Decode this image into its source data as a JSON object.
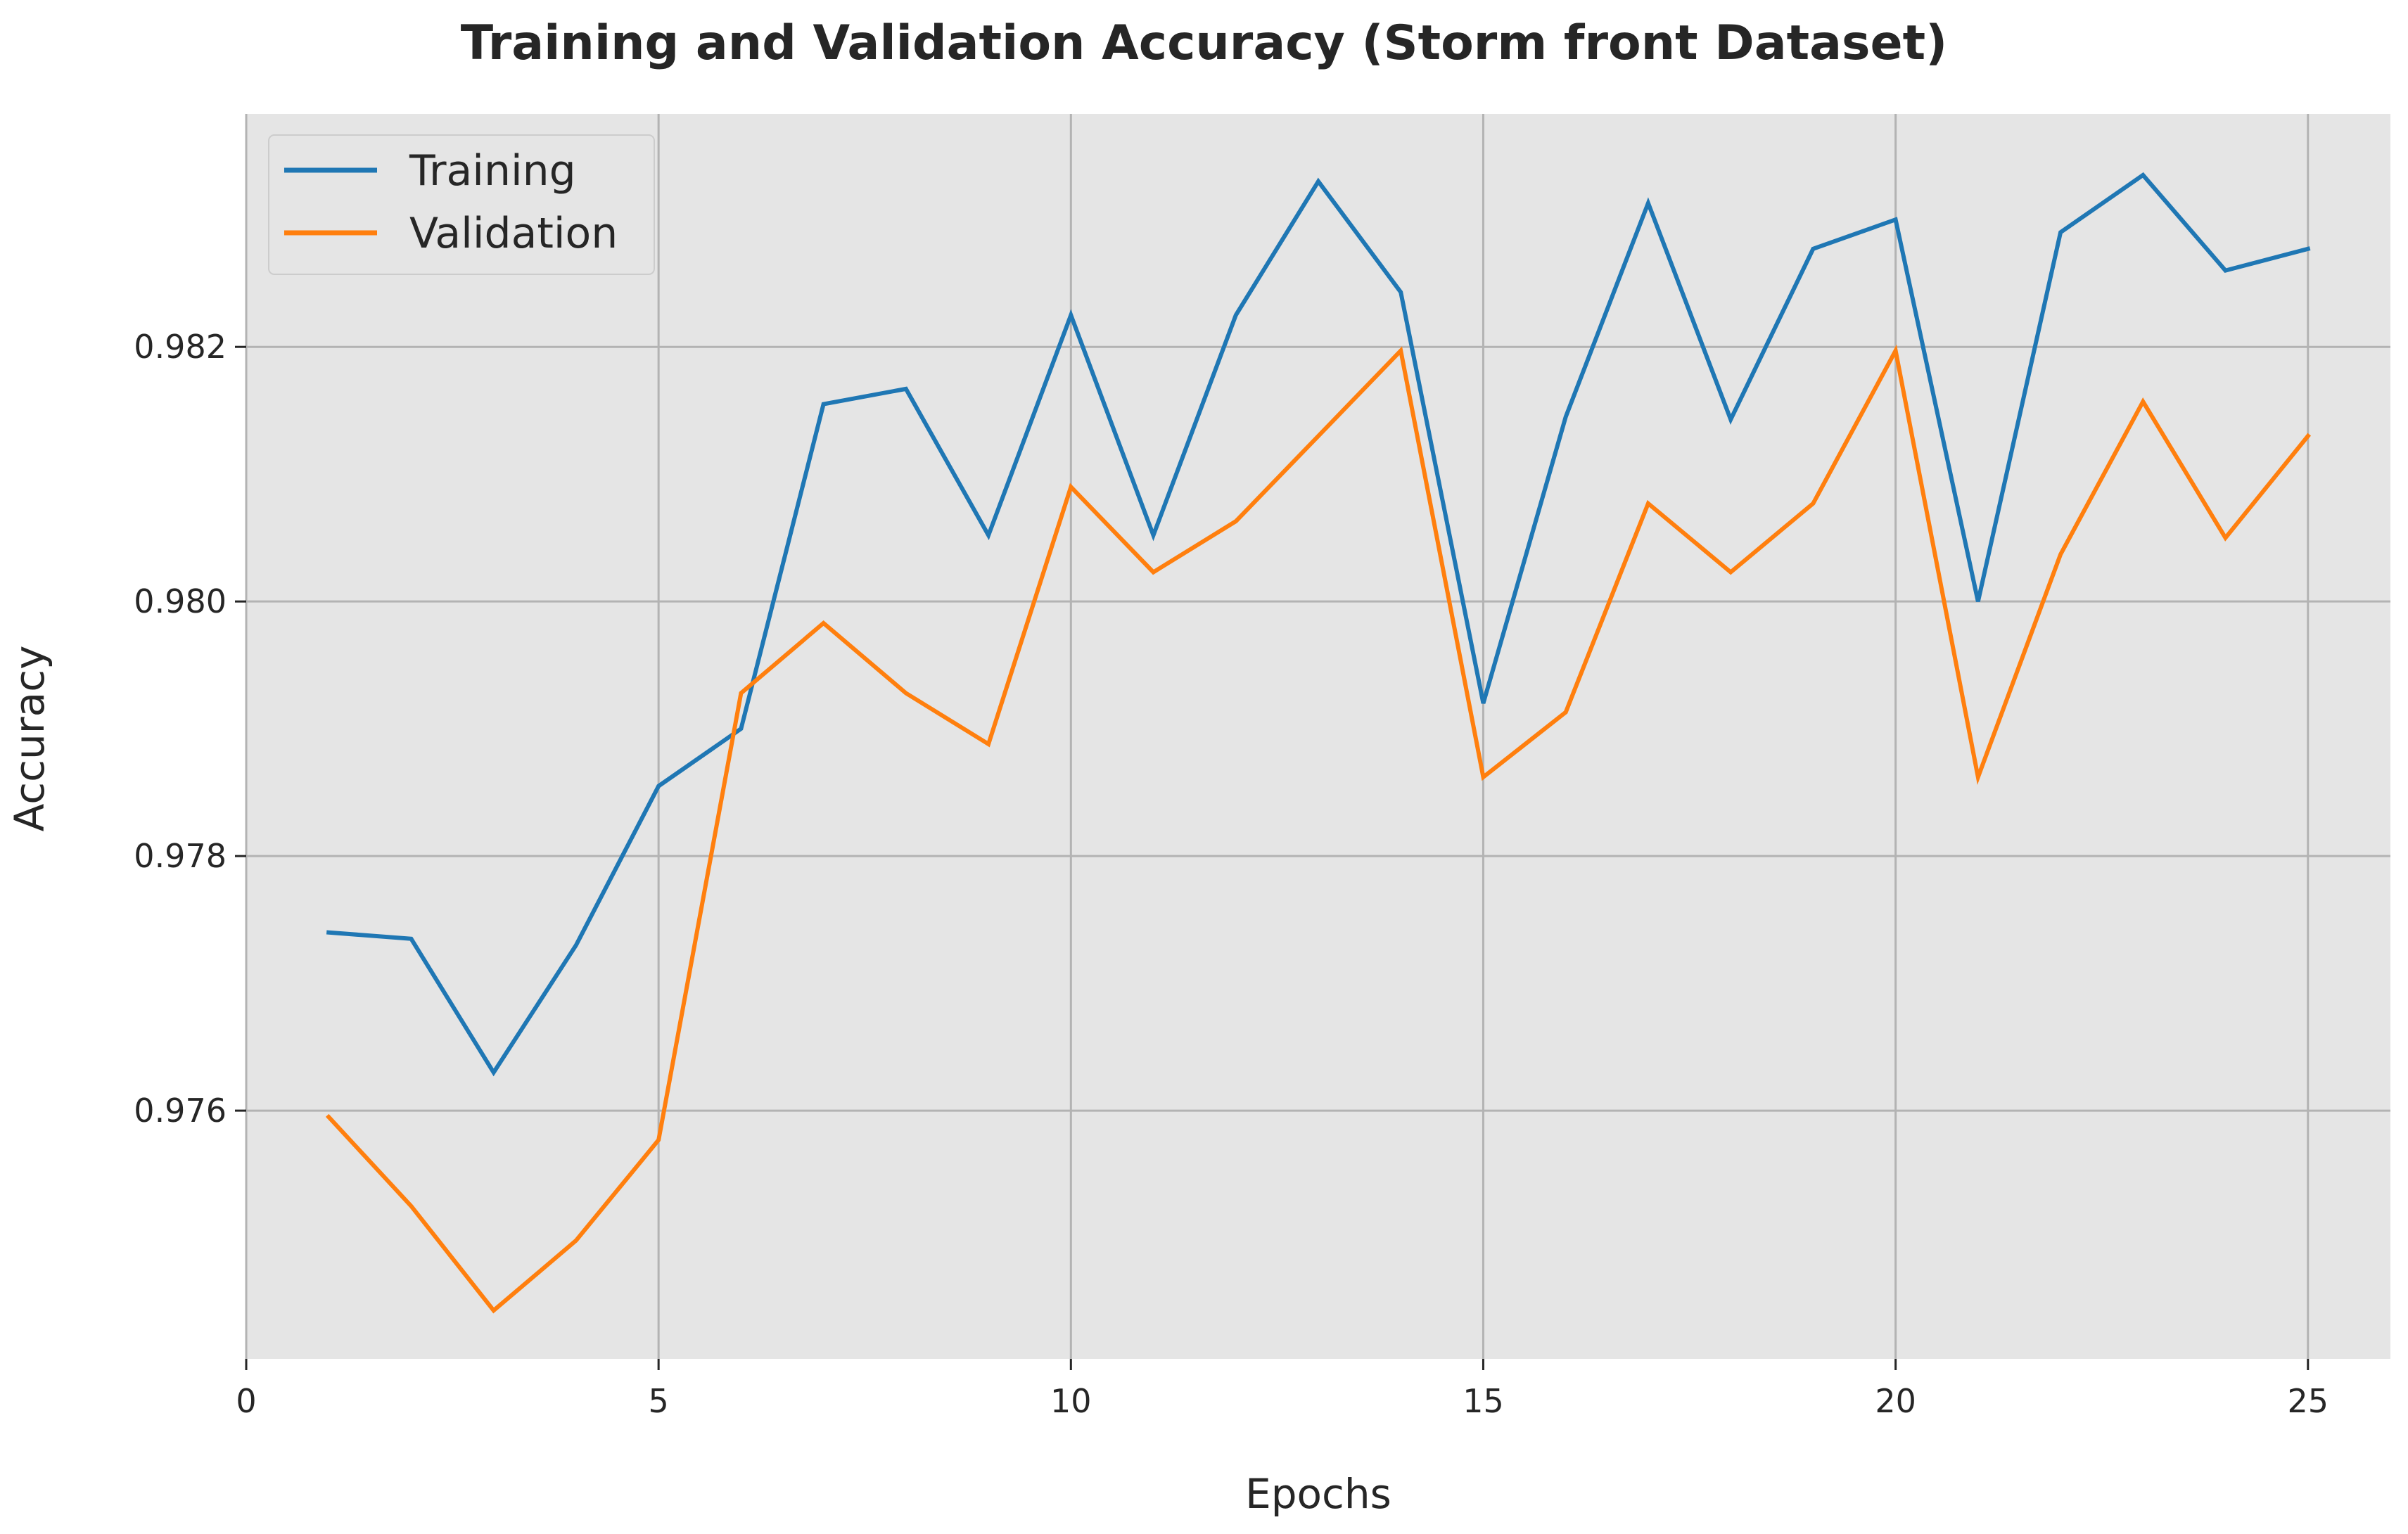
{
  "chart_data": {
    "type": "line",
    "title": "Training and Validation Accuracy (Storm front Dataset)",
    "xlabel": "Epochs",
    "ylabel": "Accuracy",
    "xlim": [
      0,
      26
    ],
    "ylim": [
      0.97405,
      0.98383
    ],
    "xticks": [
      0,
      5,
      10,
      15,
      20,
      25
    ],
    "yticks": [
      0.976,
      0.978,
      0.98,
      0.982
    ],
    "ytick_labels": [
      "0.976",
      "0.978",
      "0.980",
      "0.982"
    ],
    "grid": true,
    "legend_position": "upper-left",
    "background": "#e5e5e5",
    "grid_color": "#b3b3b3",
    "x": [
      1,
      2,
      3,
      4,
      5,
      6,
      7,
      8,
      9,
      10,
      11,
      12,
      13,
      14,
      15,
      16,
      17,
      18,
      19,
      20,
      21,
      22,
      23,
      24,
      25
    ],
    "series": [
      {
        "name": "Training",
        "color": "#1f77b4",
        "values": [
          0.9774,
          0.97735,
          0.9763,
          0.9773,
          0.97855,
          0.979,
          0.98155,
          0.98167,
          0.98052,
          0.98225,
          0.98052,
          0.98225,
          0.9833,
          0.98243,
          0.9792,
          0.98145,
          0.98313,
          0.98143,
          0.98277,
          0.983,
          0.98,
          0.9829,
          0.98335,
          0.9826,
          0.98277
        ]
      },
      {
        "name": "Validation",
        "color": "#ff7f0e",
        "values": [
          0.97595,
          0.97525,
          0.97443,
          0.97498,
          0.97577,
          0.97928,
          0.97983,
          0.97928,
          0.97888,
          0.9809,
          0.98023,
          0.98063,
          0.9813,
          0.98197,
          0.97862,
          0.97913,
          0.98077,
          0.98023,
          0.98077,
          0.98197,
          0.97862,
          0.98037,
          0.98157,
          0.9805,
          0.9813
        ]
      }
    ]
  }
}
